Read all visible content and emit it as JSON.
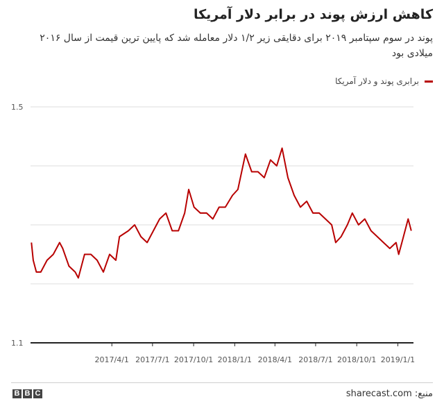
{
  "title": "کاهش ارزش پوند در برابر دلار آمریکا",
  "subtitle": "پوند در سوم سپتامبر ۲۰۱۹ برای دقایقی زیر ۱/۲ دلار معامله شد که پایین ترین قیمت از سال ۲۰۱۶ میلادی بود",
  "legend_label": "برابری پوند و دلار آمریکا",
  "source": "منبع: sharecast.com",
  "logo_letters": [
    "B",
    "B",
    "C"
  ],
  "colors": {
    "series": "#b80000",
    "grid": "#dddddd",
    "axis": "#222222"
  },
  "chart_data": {
    "type": "line",
    "ylim": [
      1.1,
      1.5
    ],
    "ytick_labels": [
      "1.5",
      "1.1"
    ],
    "gridlines_y": [
      1.2,
      1.3,
      1.4,
      1.5
    ],
    "xlim": [
      "2016-10-01",
      "2019-02-05"
    ],
    "xticks": [
      "2017-04-01",
      "2017-07-01",
      "2017-10-01",
      "2018-01-01",
      "2018-04-01",
      "2018-07-01",
      "2018-10-01",
      "2019-01-01"
    ],
    "xtick_labels": [
      "2017/4/1",
      "2017/7/1",
      "2017/10/1",
      "2018/1/1",
      "2018/4/1",
      "2018/7/1",
      "2018/10/1",
      "2019/1/1"
    ],
    "series": [
      {
        "name": "برابری پوند و دلار آمریکا",
        "points": [
          [
            "2016-10-03",
            1.27
          ],
          [
            "2016-10-07",
            1.24
          ],
          [
            "2016-10-14",
            1.22
          ],
          [
            "2016-10-24",
            1.22
          ],
          [
            "2016-11-07",
            1.24
          ],
          [
            "2016-11-21",
            1.25
          ],
          [
            "2016-12-05",
            1.27
          ],
          [
            "2016-12-12",
            1.26
          ],
          [
            "2016-12-26",
            1.23
          ],
          [
            "2017-01-09",
            1.22
          ],
          [
            "2017-01-16",
            1.21
          ],
          [
            "2017-01-30",
            1.25
          ],
          [
            "2017-02-13",
            1.25
          ],
          [
            "2017-02-27",
            1.24
          ],
          [
            "2017-03-13",
            1.22
          ],
          [
            "2017-03-27",
            1.25
          ],
          [
            "2017-04-10",
            1.24
          ],
          [
            "2017-04-18",
            1.28
          ],
          [
            "2017-05-08",
            1.29
          ],
          [
            "2017-05-22",
            1.3
          ],
          [
            "2017-06-05",
            1.28
          ],
          [
            "2017-06-19",
            1.27
          ],
          [
            "2017-07-03",
            1.29
          ],
          [
            "2017-07-17",
            1.31
          ],
          [
            "2017-07-31",
            1.32
          ],
          [
            "2017-08-14",
            1.29
          ],
          [
            "2017-08-28",
            1.29
          ],
          [
            "2017-09-11",
            1.32
          ],
          [
            "2017-09-20",
            1.36
          ],
          [
            "2017-10-02",
            1.33
          ],
          [
            "2017-10-16",
            1.32
          ],
          [
            "2017-10-30",
            1.32
          ],
          [
            "2017-11-13",
            1.31
          ],
          [
            "2017-11-27",
            1.33
          ],
          [
            "2017-12-11",
            1.33
          ],
          [
            "2017-12-27",
            1.35
          ],
          [
            "2018-01-08",
            1.36
          ],
          [
            "2018-01-25",
            1.42
          ],
          [
            "2018-02-08",
            1.39
          ],
          [
            "2018-02-22",
            1.39
          ],
          [
            "2018-03-08",
            1.38
          ],
          [
            "2018-03-22",
            1.41
          ],
          [
            "2018-04-05",
            1.4
          ],
          [
            "2018-04-17",
            1.43
          ],
          [
            "2018-04-30",
            1.38
          ],
          [
            "2018-05-14",
            1.35
          ],
          [
            "2018-05-28",
            1.33
          ],
          [
            "2018-06-11",
            1.34
          ],
          [
            "2018-06-25",
            1.32
          ],
          [
            "2018-07-09",
            1.32
          ],
          [
            "2018-07-23",
            1.31
          ],
          [
            "2018-08-06",
            1.3
          ],
          [
            "2018-08-15",
            1.27
          ],
          [
            "2018-08-27",
            1.28
          ],
          [
            "2018-09-10",
            1.3
          ],
          [
            "2018-09-21",
            1.32
          ],
          [
            "2018-10-05",
            1.3
          ],
          [
            "2018-10-19",
            1.31
          ],
          [
            "2018-11-02",
            1.29
          ],
          [
            "2018-11-16",
            1.28
          ],
          [
            "2018-11-30",
            1.27
          ],
          [
            "2018-12-14",
            1.26
          ],
          [
            "2018-12-28",
            1.27
          ],
          [
            "2019-01-03",
            1.25
          ],
          [
            "2019-01-10",
            1.27
          ],
          [
            "2019-01-17",
            1.29
          ],
          [
            "2019-01-24",
            1.31
          ],
          [
            "2019-01-31",
            1.29
          ]
        ]
      }
    ]
  }
}
